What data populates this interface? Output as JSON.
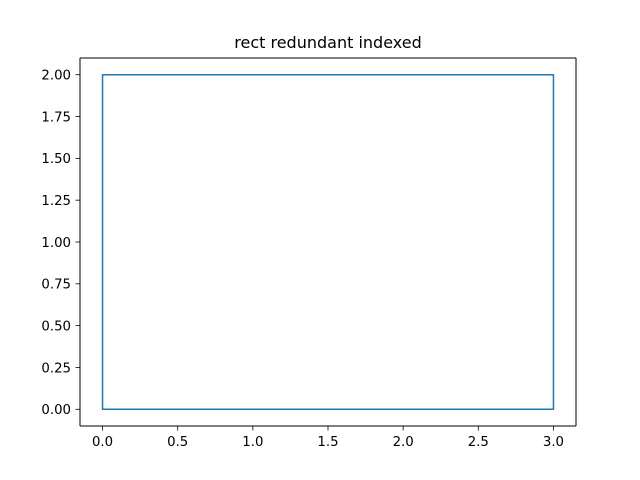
{
  "chart_data": {
    "type": "line",
    "title": "rect redundant indexed",
    "xlabel": "",
    "ylabel": "",
    "xlim": [
      -0.15,
      3.15
    ],
    "ylim": [
      -0.1,
      2.1
    ],
    "grid": false,
    "x_ticks": [
      0.0,
      0.5,
      1.0,
      1.5,
      2.0,
      2.5,
      3.0
    ],
    "x_tick_labels": [
      "0.0",
      "0.5",
      "1.0",
      "1.5",
      "2.0",
      "2.5",
      "3.0"
    ],
    "y_ticks": [
      0.0,
      0.25,
      0.5,
      0.75,
      1.0,
      1.25,
      1.5,
      1.75,
      2.0
    ],
    "y_tick_labels": [
      "0.00",
      "0.25",
      "0.50",
      "0.75",
      "1.00",
      "1.25",
      "1.50",
      "1.75",
      "2.00"
    ],
    "series": [
      {
        "color": "#1f77b4",
        "x": [
          0,
          3,
          3,
          0,
          0
        ],
        "y": [
          0,
          0,
          2,
          2,
          0
        ]
      }
    ]
  }
}
